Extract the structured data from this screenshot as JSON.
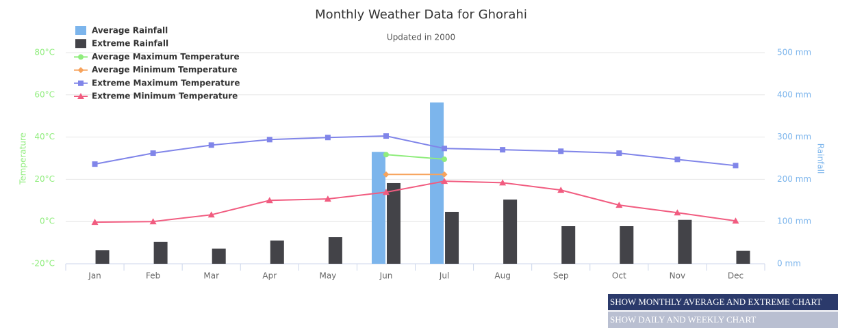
{
  "chart_data": {
    "type": "combo",
    "title": "Monthly Weather Data for Ghorahi",
    "subtitle": "Updated in 2000",
    "y_label": "Temperature",
    "y2_label": "Rainfall",
    "categories": [
      "Jan",
      "Feb",
      "Mar",
      "Apr",
      "May",
      "Jun",
      "Jul",
      "Aug",
      "Sep",
      "Oct",
      "Nov",
      "Dec"
    ],
    "ylim": [
      -20,
      80
    ],
    "yticks": [
      {
        "value": -20,
        "label": "-20°C"
      },
      {
        "value": 0,
        "label": "0°C"
      },
      {
        "value": 20,
        "label": "20°C"
      },
      {
        "value": 40,
        "label": "40°C"
      },
      {
        "value": 60,
        "label": "60°C"
      },
      {
        "value": 80,
        "label": "80°C"
      }
    ],
    "y2lim": [
      0,
      500
    ],
    "y2ticks": [
      {
        "value": 0,
        "label": "0 mm"
      },
      {
        "value": 100,
        "label": "100 mm"
      },
      {
        "value": 200,
        "label": "200 mm"
      },
      {
        "value": 300,
        "label": "300 mm"
      },
      {
        "value": 400,
        "label": "400 mm"
      },
      {
        "value": 500,
        "label": "500 mm"
      }
    ],
    "grid": true,
    "legend": "top-left",
    "series": [
      {
        "name": "Average Rainfall",
        "type": "bar",
        "axis": "y2",
        "color": "#7cb5ec",
        "values": [
          null,
          null,
          null,
          null,
          null,
          265,
          382,
          null,
          null,
          null,
          null,
          null
        ]
      },
      {
        "name": "Extreme Rainfall",
        "type": "bar",
        "axis": "y2",
        "color": "#434348",
        "values": [
          32,
          52,
          36,
          55,
          63,
          191,
          123,
          152,
          89,
          89,
          104,
          31
        ]
      },
      {
        "name": "Average Maximum Temperature",
        "type": "line",
        "marker": "circle",
        "color": "#90ed7d",
        "values": [
          null,
          null,
          null,
          null,
          null,
          31.7,
          29.5,
          null,
          null,
          null,
          null,
          null
        ]
      },
      {
        "name": "Average Minimum Temperature",
        "type": "line",
        "marker": "diamond",
        "color": "#f7a35c",
        "values": [
          null,
          null,
          null,
          null,
          null,
          22.3,
          22.3,
          null,
          null,
          null,
          null,
          null
        ]
      },
      {
        "name": "Extreme Maximum Temperature",
        "type": "line",
        "marker": "square",
        "color": "#8085e9",
        "values": [
          27.2,
          32.4,
          36.2,
          38.8,
          39.8,
          40.5,
          34.6,
          34,
          33.3,
          32.4,
          29.4,
          26.5
        ]
      },
      {
        "name": "Extreme Minimum Temperature",
        "type": "line",
        "marker": "triangle",
        "color": "#f15c80",
        "values": [
          -0.3,
          0,
          3.2,
          10,
          10.7,
          13.9,
          19.1,
          18.4,
          14.9,
          7.8,
          4.2,
          0.3
        ]
      }
    ]
  },
  "buttons": [
    "SHOW MONTHLY AVERAGE AND EXTREME CHART",
    "SHOW DAILY AND WEEKLY CHART"
  ]
}
